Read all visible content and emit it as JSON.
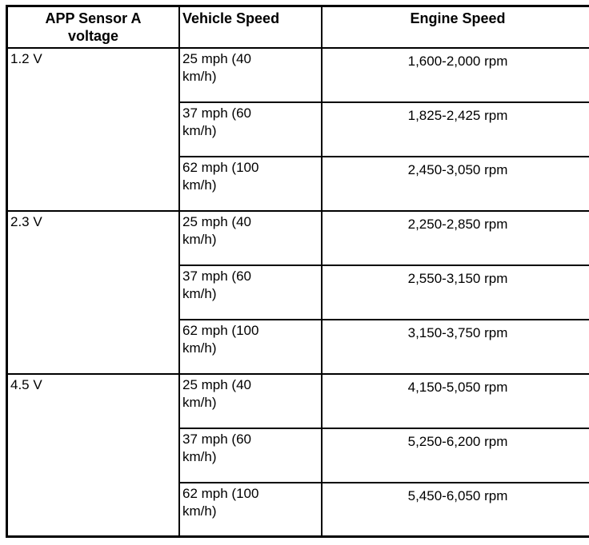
{
  "colors": {
    "border": "#000000",
    "background": "#ffffff",
    "text": "#000000"
  },
  "table": {
    "headers": [
      "APP Sensor A\nvoltage",
      "Vehicle Speed",
      "Engine Speed"
    ],
    "groups": [
      {
        "voltage": "1.2 V",
        "rows": [
          {
            "vehicle_speed": "25 mph (40\nkm/h)",
            "engine_speed": "1,600-2,000 rpm"
          },
          {
            "vehicle_speed": "37 mph (60\nkm/h)",
            "engine_speed": "1,825-2,425 rpm"
          },
          {
            "vehicle_speed": "62 mph (100\nkm/h)",
            "engine_speed": "2,450-3,050 rpm"
          }
        ]
      },
      {
        "voltage": "2.3 V",
        "rows": [
          {
            "vehicle_speed": "25 mph (40\nkm/h)",
            "engine_speed": "2,250-2,850 rpm"
          },
          {
            "vehicle_speed": "37 mph (60\nkm/h)",
            "engine_speed": "2,550-3,150 rpm"
          },
          {
            "vehicle_speed": "62 mph (100\nkm/h)",
            "engine_speed": "3,150-3,750 rpm"
          }
        ]
      },
      {
        "voltage": "4.5 V",
        "rows": [
          {
            "vehicle_speed": "25 mph (40\nkm/h)",
            "engine_speed": "4,150-5,050 rpm"
          },
          {
            "vehicle_speed": "37 mph (60\nkm/h)",
            "engine_speed": "5,250-6,200 rpm"
          },
          {
            "vehicle_speed": "62 mph (100\nkm/h)",
            "engine_speed": "5,450-6,050 rpm"
          }
        ]
      }
    ]
  }
}
